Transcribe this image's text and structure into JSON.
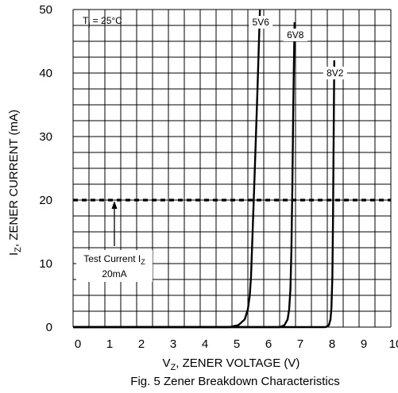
{
  "chart_data": {
    "type": "line",
    "caption": "Fig. 5  Zener Breakdown Characteristics",
    "condition_label": "T",
    "condition_sub": "j",
    "condition_value": " = 25°C",
    "xlabel_main": "V",
    "xlabel_sub": "Z",
    "xlabel_rest": ", ZENER VOLTAGE (V)",
    "ylabel_main": "I",
    "ylabel_sub": "Z",
    "ylabel_rest": ", ZENER CURRENT (mA)",
    "xlim": [
      0,
      10
    ],
    "ylim": [
      0,
      50
    ],
    "x_ticks": [
      "0",
      "1",
      "2",
      "3",
      "4",
      "5",
      "6",
      "7",
      "8",
      "9",
      "10"
    ],
    "y_ticks": [
      "0",
      "10",
      "20",
      "30",
      "40",
      "50"
    ],
    "grid": true,
    "test_current": {
      "label_main": "Test Current I",
      "label_sub": "Z",
      "value_label": "20mA",
      "value": 20
    },
    "series": [
      {
        "name": "5V6",
        "x": [
          0,
          4.9,
          5.2,
          5.4,
          5.5,
          5.56,
          5.6,
          5.65,
          5.72,
          5.8,
          5.88
        ],
        "y": [
          0,
          0,
          0.3,
          1.2,
          2.8,
          5,
          8,
          15,
          25,
          37,
          50
        ]
      },
      {
        "name": "6V8",
        "x": [
          0,
          6.5,
          6.65,
          6.75,
          6.8,
          6.84,
          6.87,
          6.9,
          6.93,
          6.97
        ],
        "y": [
          0,
          0,
          0.3,
          1.2,
          2.8,
          6,
          12,
          22,
          35,
          48
        ]
      },
      {
        "name": "8V2",
        "x": [
          0,
          7.95,
          8.05,
          8.1,
          8.13,
          8.16,
          8.18,
          8.2,
          8.22
        ],
        "y": [
          0,
          0,
          0.3,
          1.2,
          3,
          8,
          17,
          30,
          42
        ]
      }
    ]
  }
}
